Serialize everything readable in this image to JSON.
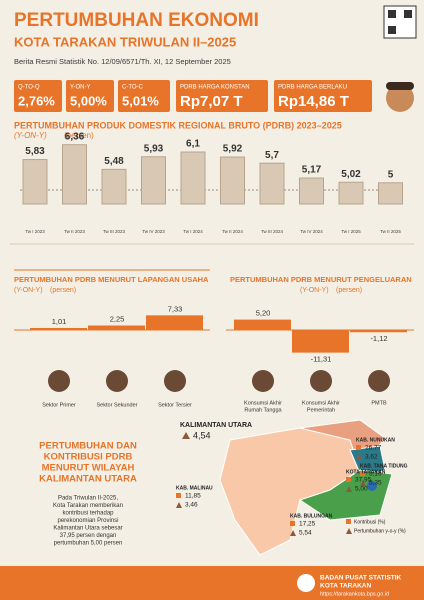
{
  "header": {
    "title": "PERTUMBUHAN EKONOMI",
    "subtitle": "KOTA TARAKAN TRIWULAN II–2025",
    "release": "Berita Resmi Statistik No. 12/09/6571/Th. XI, 12 September 2025"
  },
  "kpis": [
    {
      "label": "Q-TO-Q",
      "value": "2,76%"
    },
    {
      "label": "Y-ON-Y",
      "value": "5,00%"
    },
    {
      "label": "C-TO-C",
      "value": "5,01%"
    },
    {
      "label": "PDRB HARGA KONSTAN",
      "value": "Rp7,07 T"
    },
    {
      "label": "PDRB HARGA BERLAKU",
      "value": "Rp14,86 T"
    }
  ],
  "timeline": {
    "title": "PERTUMBUHAN PRODUK DOMESTIK REGIONAL BRUTO (PDRB) 2023–2025",
    "unit": "(Y-ON-Y)",
    "unit2": "(persen)",
    "categories": [
      "Tw I 2023",
      "Tw II 2023",
      "Tw III 2023",
      "Tw IV 2023",
      "Tw I 2024",
      "Tw II 2024",
      "Tw III 2024",
      "Tw IV 2024",
      "Tw I 2025",
      "Tw II 2025"
    ],
    "values": [
      5.83,
      6.36,
      5.48,
      5.93,
      6.1,
      5.92,
      5.7,
      5.17,
      5.02,
      5
    ],
    "value_labels": [
      "5,83",
      "6,36",
      "5,48",
      "5,93",
      "6,1",
      "5,92",
      "5,7",
      "5,17",
      "5,02",
      "5"
    ]
  },
  "sector_chart": {
    "title": "PERTUMBUHAN PDRB MENURUT LAPANGAN USAHA",
    "unit": "(Y-ON-Y)",
    "unit2": "(persen)",
    "categories": [
      "Sektor Primer",
      "Sektor Sekunder",
      "Sektor Tersier"
    ],
    "values": [
      1.01,
      2.25,
      7.33
    ],
    "value_labels": [
      "1,01",
      "2,25",
      "7,33"
    ]
  },
  "expenditure_chart": {
    "title": "PERTUMBUHAN PDRB MENURUT PENGELUARAN",
    "unit": "(Y-ON-Y)",
    "unit2": "(persen)",
    "categories": [
      [
        "Konsumsi Akhir",
        "Rumah Tangga"
      ],
      [
        "Konsumsi Akhir",
        "Pemerintah"
      ],
      [
        "PMTB"
      ]
    ],
    "values": [
      5.2,
      -11.31,
      -1.12
    ],
    "value_labels": [
      "5,20",
      "-11,31",
      "-1,12"
    ]
  },
  "regional": {
    "title": [
      "PERTUMBUHAN DAN",
      "KONTRIBUSI PDRB",
      "MENURUT WILAYAH",
      "KALIMANTAN UTARA"
    ],
    "paragraph": [
      "Pada Triwulan II-2025,",
      "Kota Tarakan memberikan",
      "kontribusi terhadap",
      "perekonomian Provinsi",
      "Kalimantan Utara sebesar",
      "37,95 persen dengan",
      "pertumbuhan 5,00 persen"
    ],
    "province": {
      "name": "KALIMANTAN UTARA",
      "growth": "4,54"
    },
    "regions": [
      {
        "name": "KAB. NUNUKAN",
        "contribution": "26,77",
        "growth": "3,62"
      },
      {
        "name": "KAB. TANA TIDUNG",
        "contribution": "5,16",
        "growth": "5,35"
      },
      {
        "name": "KOTA TARAKAN",
        "contribution": "37,95",
        "growth": "5,00"
      },
      {
        "name": "KAB. MALINAU",
        "contribution": "11,85",
        "growth": "3,46"
      },
      {
        "name": "KAB. BULUNGAN",
        "contribution": "17,25",
        "growth": "5,54"
      }
    ],
    "legend": [
      "Kontribusi (%)",
      "Pertumbuhan y-o-y (%)"
    ]
  },
  "footer": {
    "org": [
      "BADAN PUSAT STATISTIK",
      "KOTA TARAKAN"
    ],
    "url": "https://tarakankota.bps.go.id"
  }
}
